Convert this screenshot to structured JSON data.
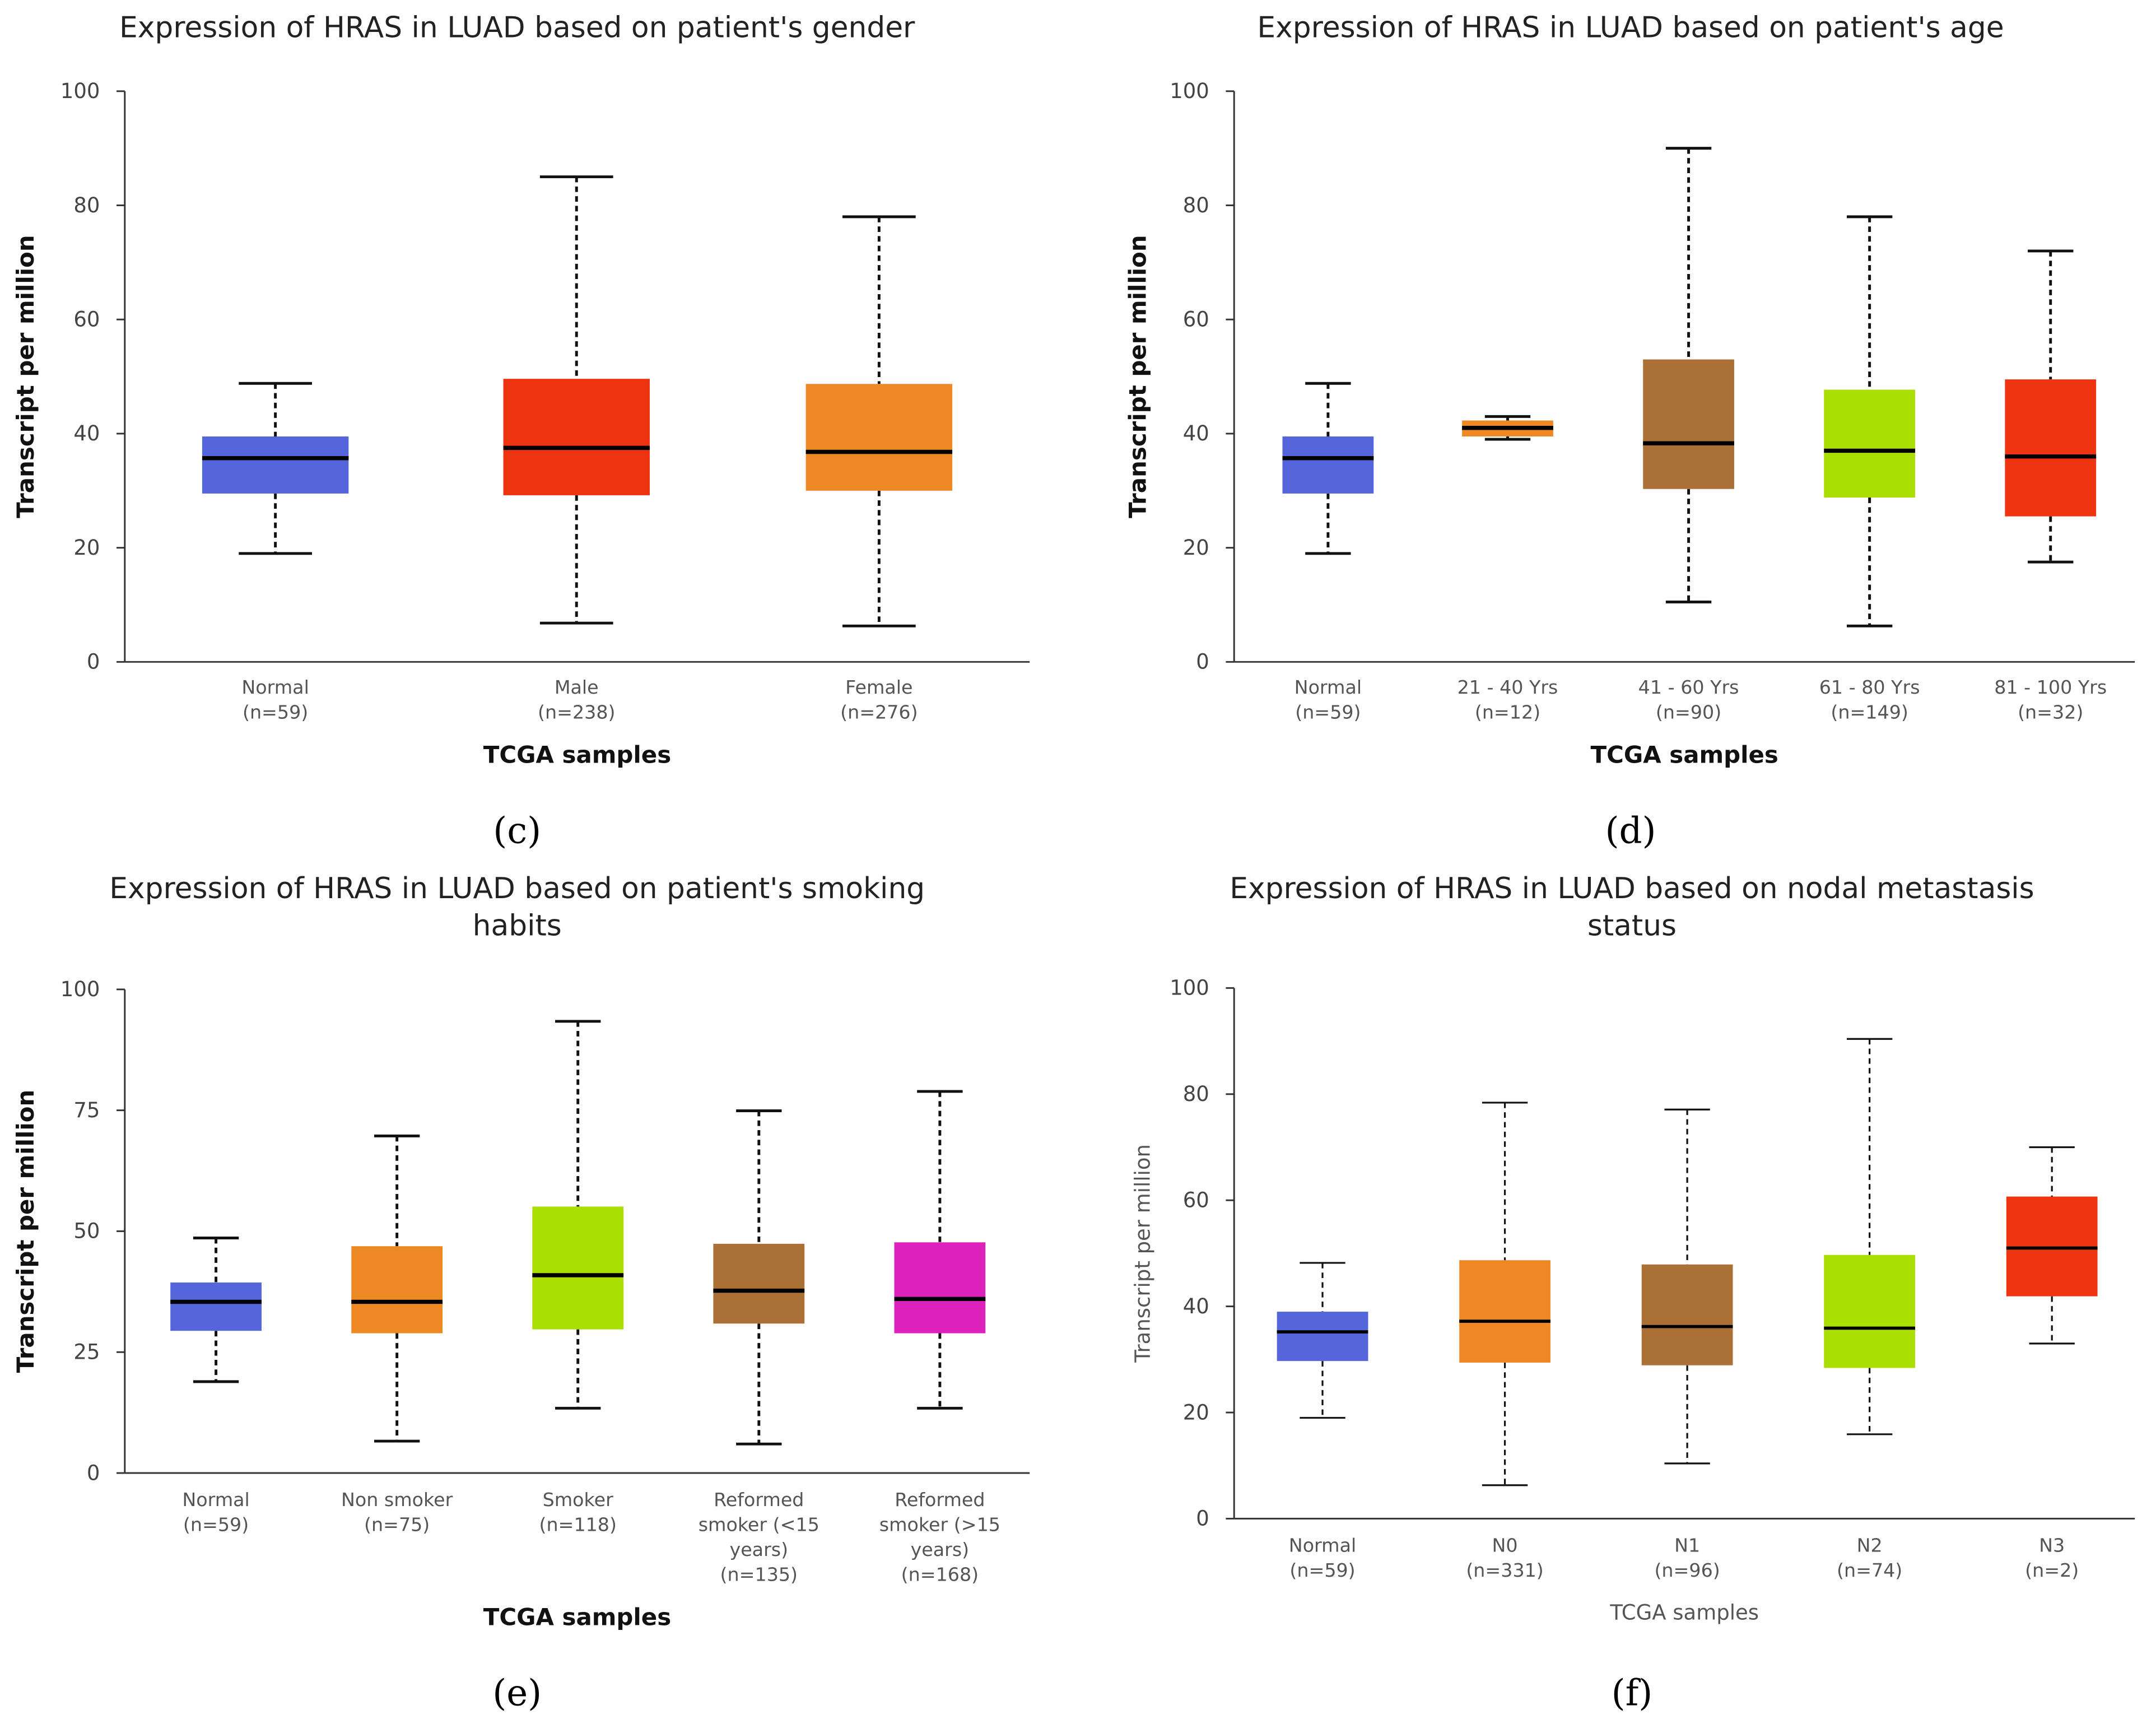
{
  "colors": {
    "blue": "#5566dd",
    "red": "#ee3311",
    "orange": "#ee8822",
    "brown": "#aa7035",
    "lime": "#aadd00",
    "magenta": "#dd22bb"
  },
  "chart_data": [
    {
      "type": "box",
      "panel_label": "(c)",
      "title": [
        "Expression of HRAS in LUAD based on patient's gender"
      ],
      "xlabel": "TCGA samples",
      "ylabel": "Transcript per million",
      "ylim": [
        0,
        100
      ],
      "yticks": [
        0,
        20,
        40,
        60,
        80,
        100
      ],
      "categories": [
        [
          "Normal",
          "(n=59)"
        ],
        [
          "Male",
          "(n=238)"
        ],
        [
          "Female",
          "(n=276)"
        ]
      ],
      "colors": [
        "blue",
        "red",
        "orange"
      ],
      "boxes": [
        {
          "min": 19,
          "q1": 29.5,
          "median": 35.7,
          "q3": 39.5,
          "max": 48.8
        },
        {
          "min": 6.8,
          "q1": 29.2,
          "median": 37.5,
          "q3": 49.6,
          "max": 85
        },
        {
          "min": 6.3,
          "q1": 30,
          "median": 36.8,
          "q3": 48.7,
          "max": 78
        }
      ]
    },
    {
      "type": "box",
      "panel_label": "(d)",
      "title": [
        "Expression of HRAS in LUAD based on patient's age"
      ],
      "xlabel": "TCGA samples",
      "ylabel": "Transcript per million",
      "ylim": [
        0,
        100
      ],
      "yticks": [
        0,
        20,
        40,
        60,
        80,
        100
      ],
      "categories": [
        [
          "Normal",
          "(n=59)"
        ],
        [
          "21 - 40 Yrs",
          "(n=12)"
        ],
        [
          "41 - 60 Yrs",
          "(n=90)"
        ],
        [
          "61 - 80 Yrs",
          "(n=149)"
        ],
        [
          "81 - 100 Yrs",
          "(n=32)"
        ]
      ],
      "colors": [
        "blue",
        "orange",
        "brown",
        "lime",
        "red"
      ],
      "boxes": [
        {
          "min": 19,
          "q1": 29.5,
          "median": 35.7,
          "q3": 39.5,
          "max": 48.8
        },
        {
          "min": 39,
          "q1": 39.5,
          "median": 41,
          "q3": 42.3,
          "max": 43
        },
        {
          "min": 10.5,
          "q1": 30.3,
          "median": 38.3,
          "q3": 53,
          "max": 90
        },
        {
          "min": 6.3,
          "q1": 28.8,
          "median": 37,
          "q3": 47.7,
          "max": 78
        },
        {
          "min": 17.5,
          "q1": 25.5,
          "median": 36,
          "q3": 49.5,
          "max": 72
        }
      ]
    },
    {
      "type": "box",
      "panel_label": "(e)",
      "title": [
        "Expression of HRAS in LUAD based on patient's smoking",
        "habits"
      ],
      "xlabel": "TCGA samples",
      "ylabel": "Transcript per million",
      "ylim": [
        0,
        100
      ],
      "yticks": [
        0,
        25,
        50,
        75,
        100
      ],
      "categories": [
        [
          "Normal",
          "(n=59)"
        ],
        [
          "Non smoker",
          "(n=75)"
        ],
        [
          "Smoker",
          "(n=118)"
        ],
        [
          "Reformed",
          "smoker (<15",
          "years)",
          "(n=135)"
        ],
        [
          "Reformed",
          "smoker (>15",
          "years)",
          "(n=168)"
        ]
      ],
      "colors": [
        "blue",
        "orange",
        "lime",
        "brown",
        "magenta"
      ],
      "boxes": [
        {
          "min": 18.9,
          "q1": 29.4,
          "median": 35.4,
          "q3": 39.4,
          "max": 48.6
        },
        {
          "min": 6.6,
          "q1": 28.9,
          "median": 35.4,
          "q3": 46.9,
          "max": 69.7
        },
        {
          "min": 13.4,
          "q1": 29.7,
          "median": 40.9,
          "q3": 55.1,
          "max": 93.4
        },
        {
          "min": 6,
          "q1": 30.9,
          "median": 37.7,
          "q3": 47.4,
          "max": 74.9
        },
        {
          "min": 13.4,
          "q1": 28.9,
          "median": 36,
          "q3": 47.7,
          "max": 78.9
        }
      ]
    },
    {
      "type": "box",
      "panel_label": "(f)",
      "title": [
        "Expression of HRAS in LUAD based on nodal metastasis",
        "status"
      ],
      "xlabel": "TCGA samples",
      "ylabel": "Transcript per million",
      "ylim": [
        0,
        100
      ],
      "yticks": [
        0,
        20,
        40,
        60,
        80,
        100
      ],
      "categories": [
        [
          "Normal",
          "(n=59)"
        ],
        [
          "N0",
          "(n=331)"
        ],
        [
          "N1",
          "(n=96)"
        ],
        [
          "N2",
          "(n=74)"
        ],
        [
          "N3",
          "(n=2)"
        ]
      ],
      "colors": [
        "blue",
        "orange",
        "brown",
        "lime",
        "red"
      ],
      "boxes": [
        {
          "min": 19,
          "q1": 29.7,
          "median": 35.2,
          "q3": 39,
          "max": 48.2
        },
        {
          "min": 6.3,
          "q1": 29.4,
          "median": 37.2,
          "q3": 48.7,
          "max": 78.4
        },
        {
          "min": 10.4,
          "q1": 28.9,
          "median": 36.2,
          "q3": 47.9,
          "max": 77.1
        },
        {
          "min": 15.9,
          "q1": 28.4,
          "median": 35.9,
          "q3": 49.7,
          "max": 90.4
        },
        {
          "min": 33,
          "q1": 41.9,
          "median": 51,
          "q3": 60.7,
          "max": 70
        }
      ]
    }
  ]
}
